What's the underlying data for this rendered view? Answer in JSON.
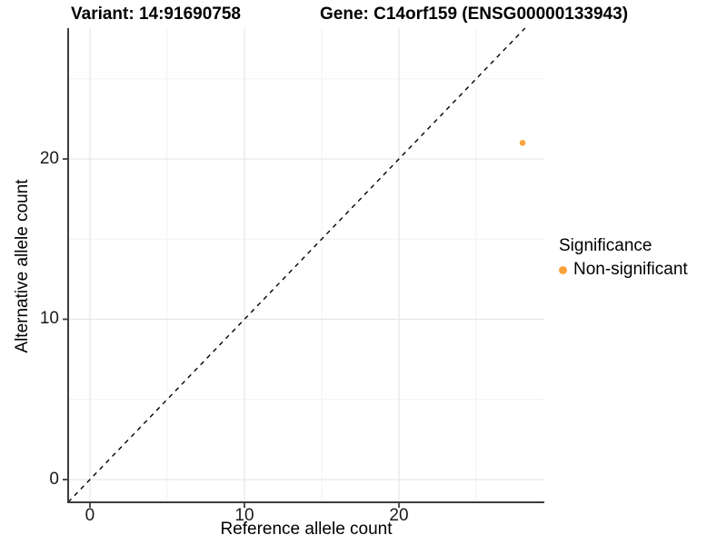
{
  "chart_data": {
    "type": "scatter",
    "title_variant": "Variant: 14:91690758",
    "title_gene": "Gene: C14orf159 (ENSG00000133943)",
    "xlabel": "Reference allele count",
    "ylabel": "Alternative allele count",
    "xlim": [
      -1.41,
      29.41
    ],
    "ylim": [
      -1.42,
      28.16
    ],
    "x_ticks": [
      0,
      10,
      20
    ],
    "y_ticks": [
      0,
      10,
      20
    ],
    "x_minor_gridlines": [
      5,
      15,
      25
    ],
    "y_minor_gridlines": [
      5,
      15,
      25
    ],
    "grid": true,
    "reference_line": {
      "type": "identity y=x",
      "style": "dashed",
      "color": "#000000"
    },
    "series": [
      {
        "name": "Non-significant",
        "color": "#FAA33C",
        "points": [
          {
            "x": 28,
            "y": 21
          }
        ]
      }
    ],
    "legend": {
      "title": "Significance",
      "position": "right",
      "items": [
        {
          "label": "Non-significant",
          "color": "#FAA33C"
        }
      ]
    }
  }
}
